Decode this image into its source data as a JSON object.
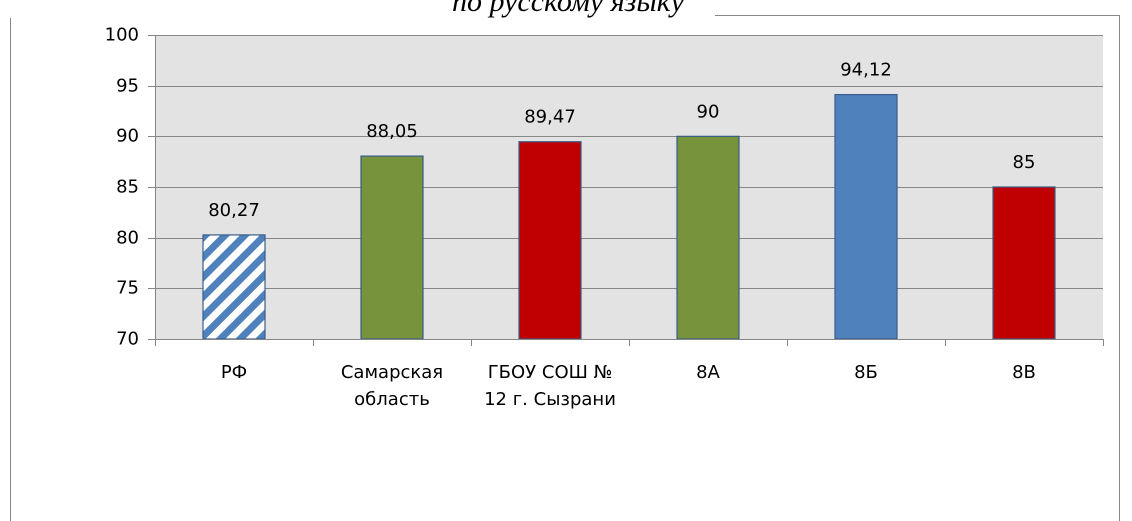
{
  "chart_data": {
    "type": "bar",
    "title": "по русскому языку",
    "categories": [
      "РФ",
      "Самарская область",
      "ГБОУ СОШ № 12 г. Сызрани",
      "8А",
      "8Б",
      "8В"
    ],
    "values": [
      80.27,
      88.05,
      89.47,
      90,
      94.12,
      85
    ],
    "value_labels": [
      "80,27",
      "88,05",
      "89,47",
      "90",
      "94,12",
      "85"
    ],
    "colors": [
      "#4f81bd",
      "#77933c",
      "#c00000",
      "#77933c",
      "#4f81bd",
      "#c00000"
    ],
    "hatched": [
      true,
      false,
      false,
      false,
      false,
      false
    ],
    "ylim": [
      70,
      100
    ],
    "yticks": [
      70,
      75,
      80,
      85,
      90,
      95,
      100
    ],
    "grid": true
  }
}
